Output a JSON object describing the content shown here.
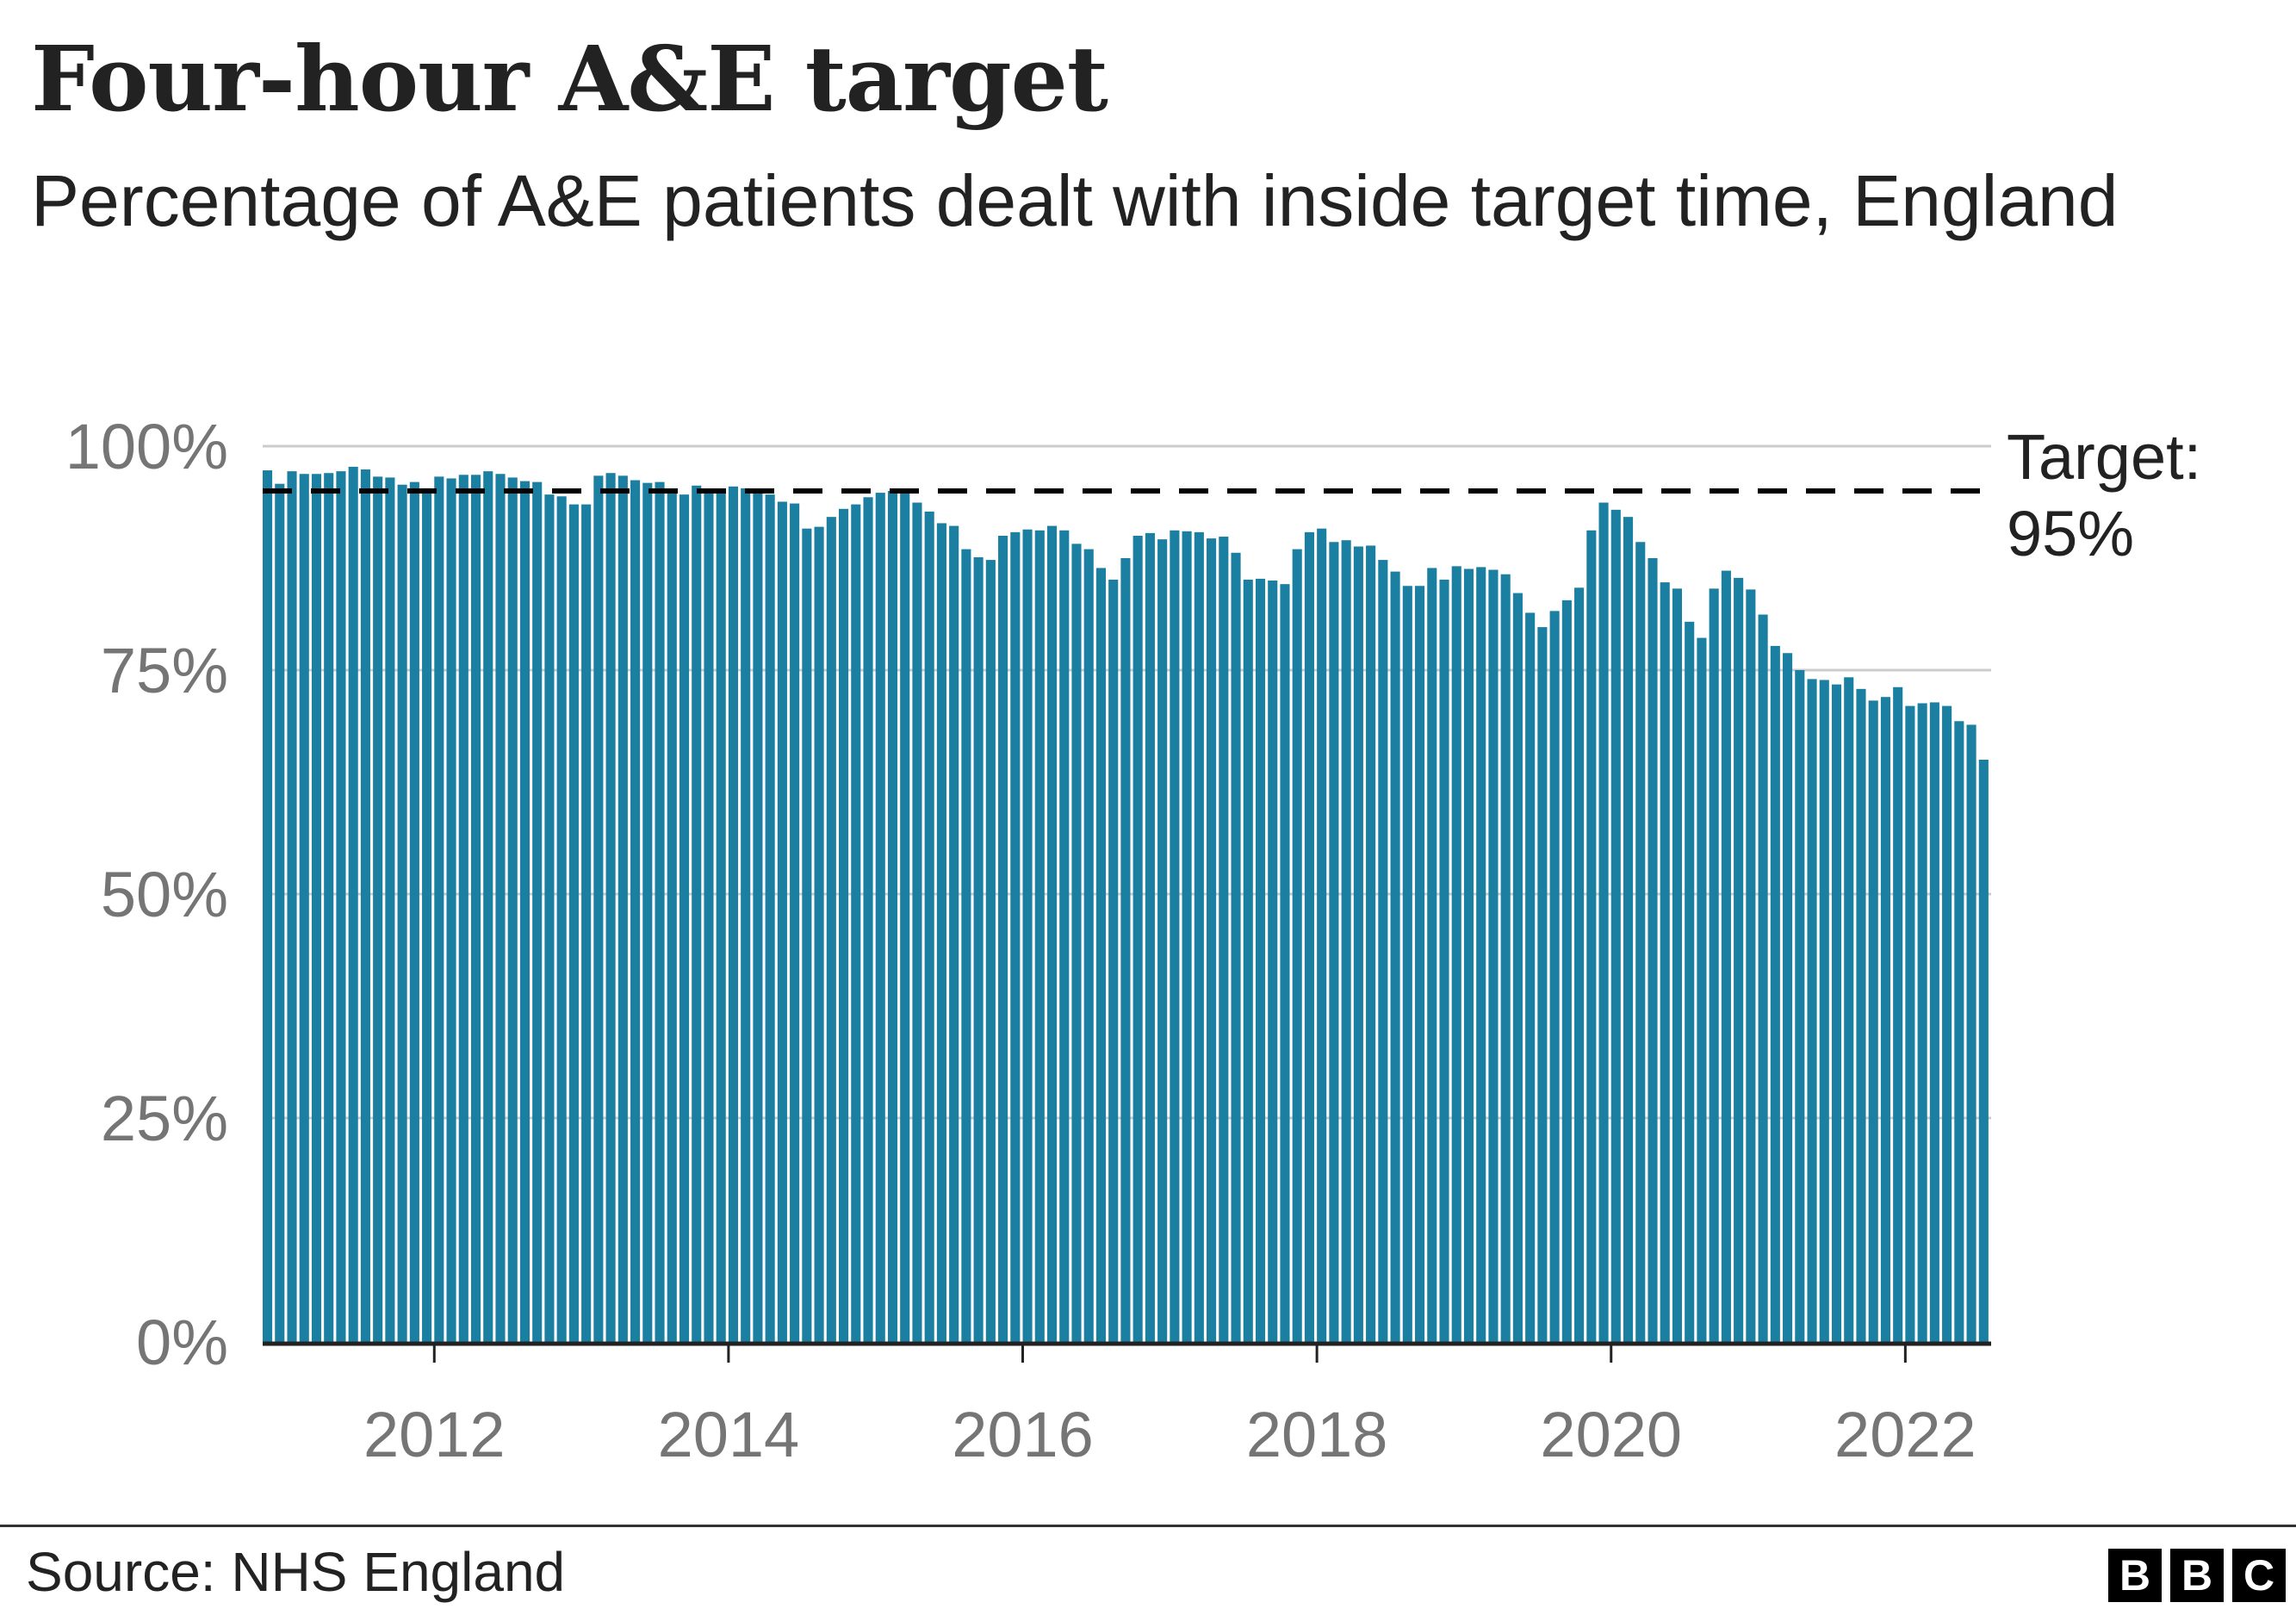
{
  "chart_data": {
    "type": "bar",
    "title": "Four-hour A&E target",
    "subtitle": "Percentage of A&E patients dealt with inside target time, England",
    "xlabel": "",
    "ylabel": "",
    "ylim": [
      0,
      100
    ],
    "y_ticks": [
      {
        "value": 0,
        "label": "0%"
      },
      {
        "value": 25,
        "label": "25%"
      },
      {
        "value": 50,
        "label": "50%"
      },
      {
        "value": 75,
        "label": "75%"
      },
      {
        "value": 100,
        "label": "100%"
      }
    ],
    "x_ticks": [
      {
        "year": 2012,
        "label": "2012"
      },
      {
        "year": 2014,
        "label": "2014"
      },
      {
        "year": 2016,
        "label": "2016"
      },
      {
        "year": 2018,
        "label": "2018"
      },
      {
        "year": 2020,
        "label": "2020"
      },
      {
        "year": 2022,
        "label": "2022"
      }
    ],
    "x_start": "2010-11",
    "x_end": "2022-12",
    "grid": true,
    "series": [
      {
        "name": "Percentage seen within four hours",
        "color": "#1a7fa1",
        "values": [
          97.3,
          95.8,
          97.2,
          96.9,
          96.9,
          97.0,
          97.2,
          97.7,
          97.4,
          96.6,
          96.5,
          95.7,
          96.0,
          95.3,
          96.6,
          96.4,
          96.8,
          96.8,
          97.2,
          96.9,
          96.5,
          96.1,
          96.0,
          94.6,
          94.4,
          93.5,
          93.5,
          96.7,
          97.0,
          96.7,
          96.2,
          95.9,
          96.0,
          95.0,
          94.6,
          95.6,
          95.2,
          95.0,
          95.5,
          95.3,
          95.2,
          94.6,
          93.8,
          93.6,
          90.8,
          91.0,
          92.1,
          93.0,
          93.5,
          94.3,
          94.8,
          95.0,
          95.0,
          93.7,
          92.7,
          91.4,
          91.1,
          88.5,
          87.6,
          87.3,
          90.0,
          90.4,
          90.7,
          90.6,
          91.1,
          90.6,
          89.1,
          88.5,
          86.4,
          85.1,
          87.5,
          90.0,
          90.3,
          89.6,
          90.6,
          90.5,
          90.4,
          89.7,
          89.9,
          88.1,
          85.1,
          85.2,
          85.0,
          84.6,
          88.5,
          90.4,
          90.8,
          89.3,
          89.5,
          88.8,
          88.9,
          87.3,
          86.0,
          84.4,
          84.4,
          86.4,
          85.1,
          86.6,
          86.3,
          86.5,
          86.2,
          85.7,
          83.6,
          81.4,
          79.8,
          81.6,
          82.8,
          84.2,
          90.6,
          93.7,
          92.9,
          92.1,
          89.3,
          87.5,
          84.8,
          84.1,
          80.4,
          78.6,
          84.1,
          86.1,
          85.3,
          84.0,
          81.2,
          77.7,
          76.9,
          75.0,
          74.0,
          73.9,
          73.4,
          74.2,
          72.9,
          71.6,
          72.0,
          73.1,
          71.0,
          71.3,
          71.4,
          71.0,
          69.3,
          68.9,
          65.0
        ]
      }
    ],
    "reference_line": {
      "value": 95,
      "label_line1": "Target:",
      "label_line2": "95%",
      "style": "dashed",
      "color": "#000000"
    }
  },
  "footer": {
    "source": "Source: NHS England",
    "logo_letters": [
      "B",
      "B",
      "C"
    ]
  }
}
